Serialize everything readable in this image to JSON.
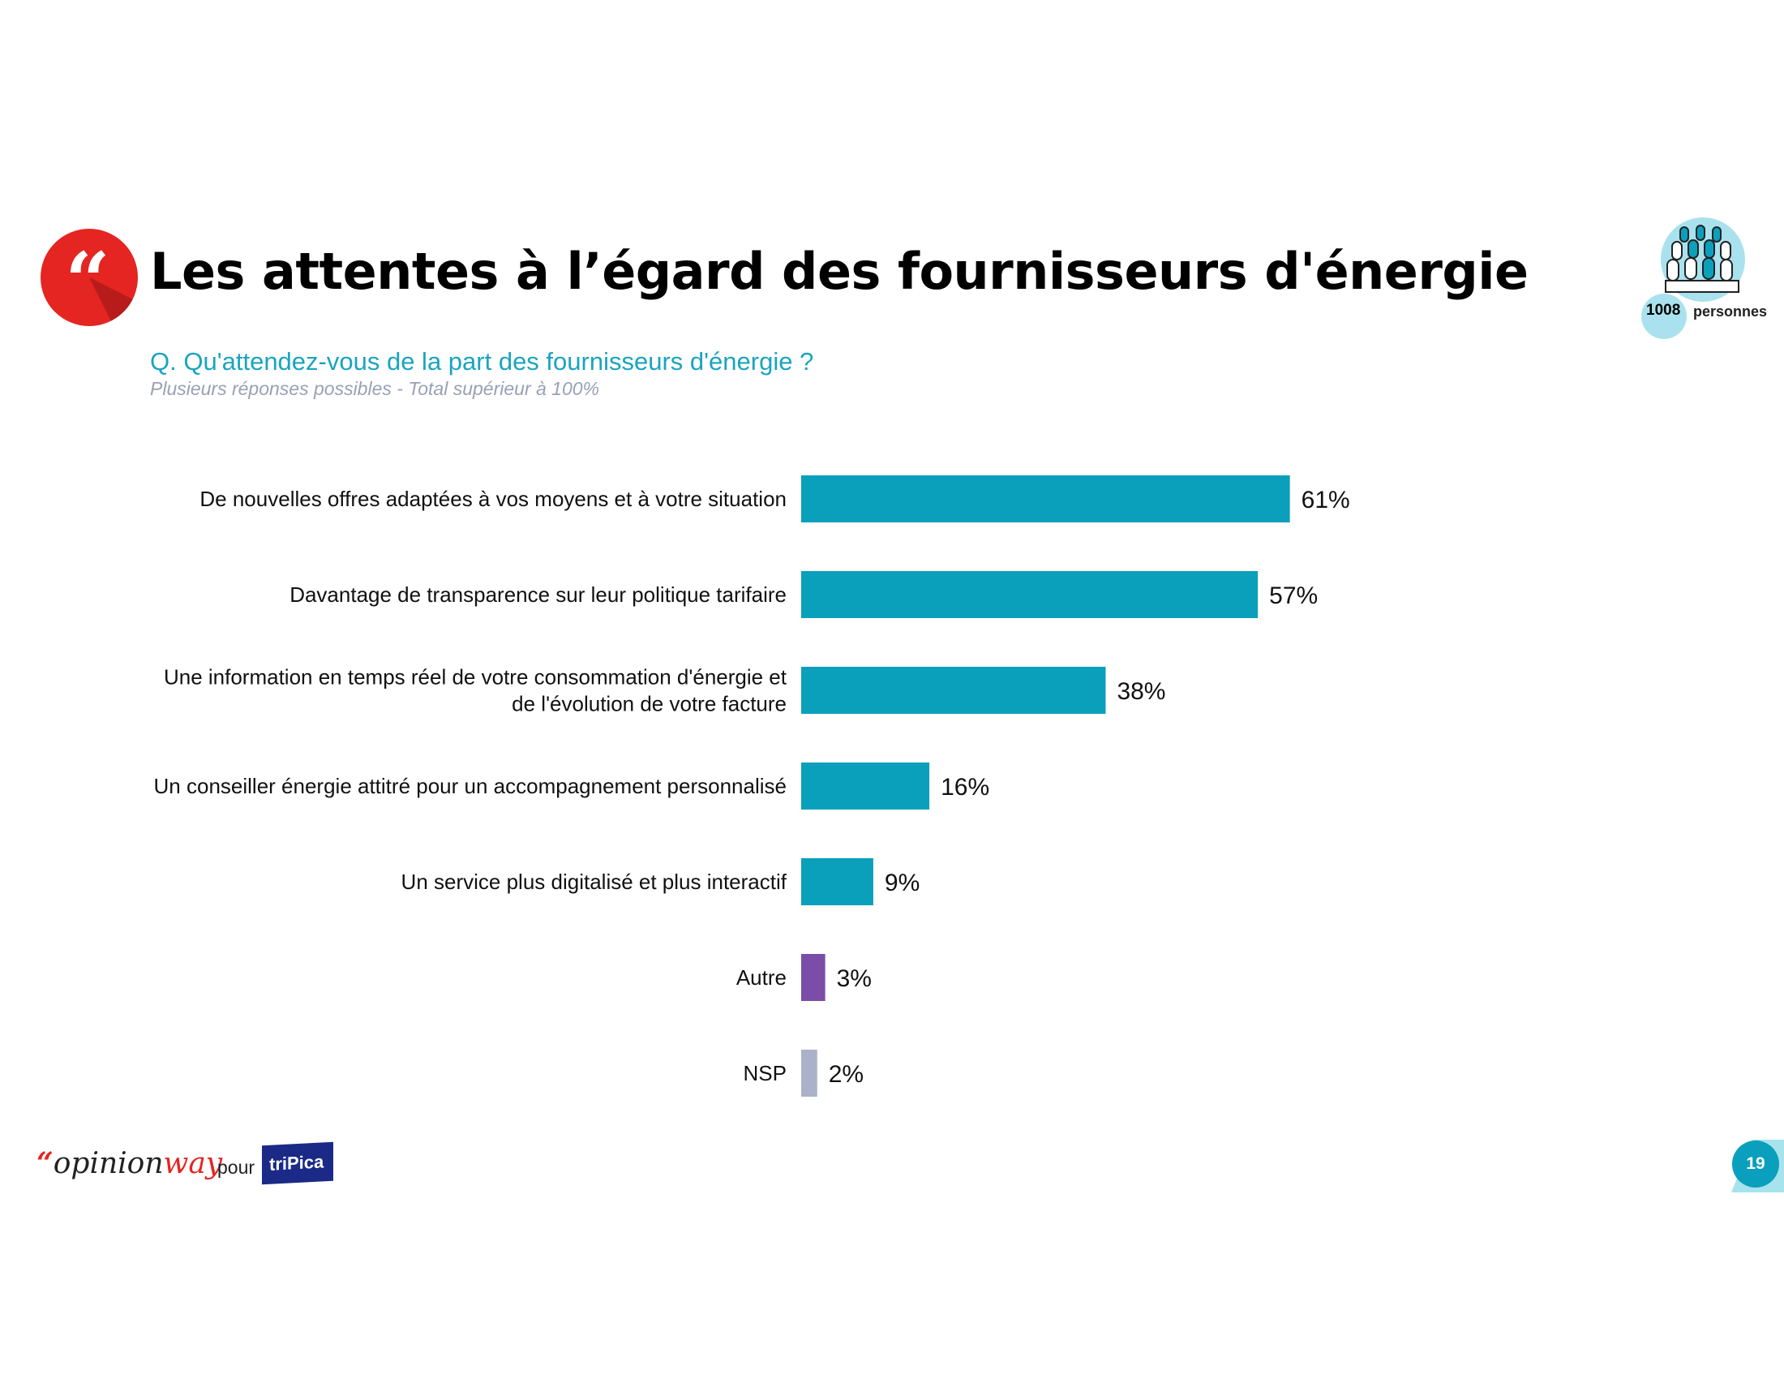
{
  "header": {
    "title": "Les attentes à l’égard des fournisseurs d'énergie",
    "question": "Q. Qu'attendez-vous de la part des fournisseurs d'énergie ?",
    "note": "Plusieurs réponses possibles - Total supérieur à 100%"
  },
  "sample": {
    "count": "1008",
    "label": "personnes"
  },
  "footer": {
    "logo_quote": "“",
    "logo_main": "opinion",
    "logo_way": "way",
    "pour": "pour",
    "partner": "triPica",
    "page": "19"
  },
  "colors": {
    "accent": "#e52521",
    "teal": "#0aa0bc",
    "purple": "#7a4ea8",
    "grey": "#a9b2c8"
  },
  "chart_data": {
    "type": "bar",
    "orientation": "horizontal",
    "categories": [
      [
        "De nouvelles offres adaptées à vos moyens et à votre situation"
      ],
      [
        "Davantage de transparence sur leur politique tarifaire"
      ],
      [
        "Une information en temps réel de votre consommation d'énergie et",
        "de l'évolution de votre facture"
      ],
      [
        "Un conseiller énergie attitré pour un accompagnement personnalisé"
      ],
      [
        "Un service plus digitalisé et plus interactif"
      ],
      [
        "Autre"
      ],
      [
        "NSP"
      ]
    ],
    "values": [
      61,
      57,
      38,
      16,
      9,
      3,
      2
    ],
    "value_labels": [
      "61%",
      "57%",
      "38%",
      "16%",
      "9%",
      "3%",
      "2%"
    ],
    "bar_colors": [
      "#0aa0bc",
      "#0aa0bc",
      "#0aa0bc",
      "#0aa0bc",
      "#0aa0bc",
      "#7a4ea8",
      "#a9b2c8"
    ],
    "unit": "%",
    "xlim": [
      0,
      100
    ]
  }
}
